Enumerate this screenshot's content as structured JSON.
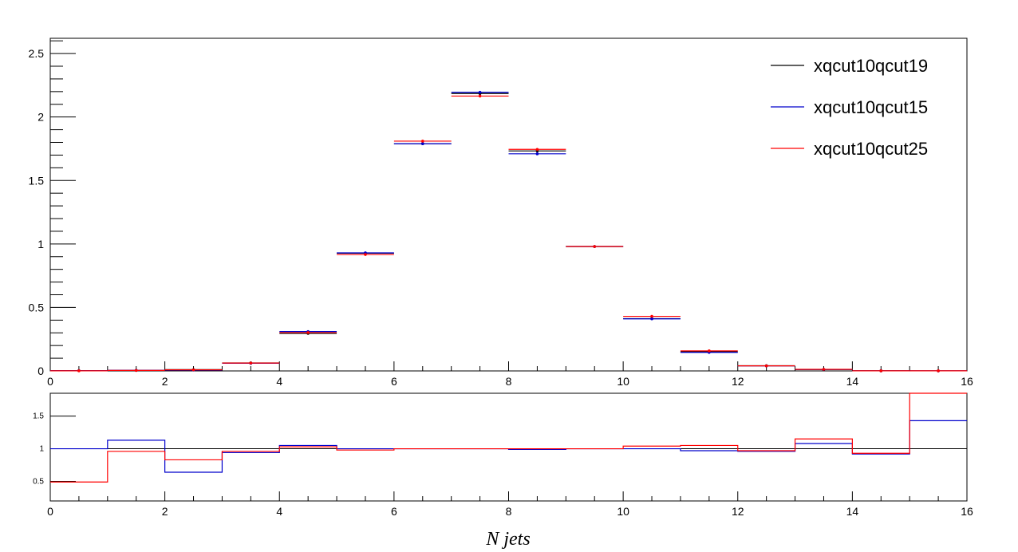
{
  "chart_data": [
    {
      "type": "line",
      "panel": "main",
      "x_bins": [
        [
          0,
          1
        ],
        [
          1,
          2
        ],
        [
          2,
          3
        ],
        [
          3,
          4
        ],
        [
          4,
          5
        ],
        [
          5,
          6
        ],
        [
          6,
          7
        ],
        [
          7,
          8
        ],
        [
          8,
          9
        ],
        [
          9,
          10
        ],
        [
          10,
          11
        ],
        [
          11,
          12
        ],
        [
          12,
          13
        ],
        [
          13,
          14
        ],
        [
          14,
          15
        ],
        [
          15,
          16
        ]
      ],
      "xlim": [
        0,
        16
      ],
      "ylim": [
        0,
        2.62
      ],
      "x_ticks": [
        "0",
        "2",
        "4",
        "6",
        "8",
        "10",
        "12",
        "14",
        "16"
      ],
      "y_ticks": [
        "0",
        "0.5",
        "1",
        "1.5",
        "2",
        "2.5"
      ],
      "legend_position": "top-right",
      "series": [
        {
          "name": "xqcut10qcut19",
          "color": "#000000",
          "values": [
            0.002,
            0.004,
            0.01,
            0.063,
            0.296,
            0.927,
            1.79,
            2.185,
            1.733,
            0.98,
            0.412,
            0.15,
            0.041,
            0.011,
            0.001,
            0.0005
          ]
        },
        {
          "name": "xqcut10qcut15",
          "color": "#0000cc",
          "values": [
            0.002,
            0.0045,
            0.0065,
            0.06,
            0.31,
            0.93,
            1.79,
            2.195,
            1.71,
            0.98,
            0.41,
            0.146,
            0.04,
            0.012,
            0.001,
            0.0007
          ]
        },
        {
          "name": "xqcut10qcut25",
          "color": "#ff0000",
          "values": [
            0.001,
            0.004,
            0.0085,
            0.062,
            0.302,
            0.917,
            1.81,
            2.165,
            1.745,
            0.98,
            0.43,
            0.158,
            0.04,
            0.0125,
            0.001,
            0.0009
          ]
        }
      ]
    },
    {
      "type": "line",
      "panel": "ratio",
      "x_bins": [
        [
          0,
          1
        ],
        [
          1,
          2
        ],
        [
          2,
          3
        ],
        [
          3,
          4
        ],
        [
          4,
          5
        ],
        [
          5,
          6
        ],
        [
          6,
          7
        ],
        [
          7,
          8
        ],
        [
          8,
          9
        ],
        [
          9,
          10
        ],
        [
          10,
          11
        ],
        [
          11,
          12
        ],
        [
          12,
          13
        ],
        [
          13,
          14
        ],
        [
          14,
          15
        ],
        [
          15,
          16
        ]
      ],
      "xlim": [
        0,
        16
      ],
      "ylim": [
        0.2,
        1.85
      ],
      "reference_line": 1,
      "x_ticks": [
        "0",
        "2",
        "4",
        "6",
        "8",
        "10",
        "12",
        "14",
        "16"
      ],
      "y_ticks": [
        "0.5",
        "1",
        "1.5"
      ],
      "xlabel": "N jets",
      "series": [
        {
          "name": "xqcut10qcut15",
          "color": "#0000cc",
          "values": [
            1.0,
            1.13,
            0.64,
            0.94,
            1.05,
            1.0,
            1.0,
            1.0,
            0.99,
            1.0,
            1.0,
            0.97,
            0.96,
            1.08,
            0.92,
            1.43
          ]
        },
        {
          "name": "xqcut10qcut25",
          "color": "#ff0000",
          "values": [
            0.49,
            0.96,
            0.83,
            0.96,
            1.03,
            0.98,
            1.0,
            1.0,
            1.0,
            1.0,
            1.04,
            1.05,
            0.97,
            1.15,
            0.93,
            1.85
          ]
        }
      ]
    }
  ]
}
